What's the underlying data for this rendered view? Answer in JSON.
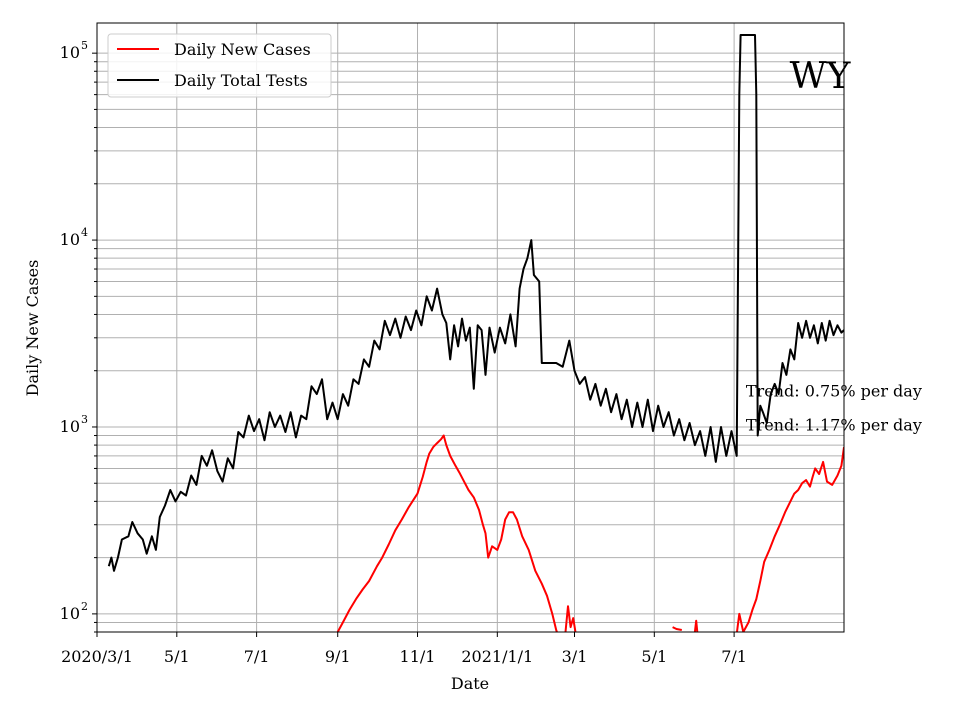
{
  "chart_data": {
    "type": "line",
    "title": "",
    "xlabel": "Date",
    "ylabel": "Daily New Cases",
    "yscale": "log",
    "ylim": [
      80,
      145000
    ],
    "xlim": [
      "2020-03-01",
      "2021-09-23"
    ],
    "grid": true,
    "legend_position": "top-left",
    "corner_label": "WY",
    "x_ticks": [
      {
        "date": "2020-03-01",
        "label": "2020/3/1"
      },
      {
        "date": "2020-05-01",
        "label": "5/1"
      },
      {
        "date": "2020-07-01",
        "label": "7/1"
      },
      {
        "date": "2020-09-01",
        "label": "9/1"
      },
      {
        "date": "2020-11-01",
        "label": "11/1"
      },
      {
        "date": "2021-01-01",
        "label": "2021/1/1"
      },
      {
        "date": "2021-03-01",
        "label": "3/1"
      },
      {
        "date": "2021-05-01",
        "label": "5/1"
      },
      {
        "date": "2021-07-01",
        "label": "7/1"
      }
    ],
    "y_ticks": [
      {
        "value": 100,
        "base": "10",
        "exp": "2"
      },
      {
        "value": 1000,
        "base": "10",
        "exp": "3"
      },
      {
        "value": 10000,
        "base": "10",
        "exp": "4"
      },
      {
        "value": 100000,
        "base": "10",
        "exp": "5"
      }
    ],
    "annotations": [
      {
        "text": "Trend: 0.75% per day",
        "date": "2021-07-10",
        "value": 1550
      },
      {
        "text": "Trend: 1.17% per day",
        "date": "2021-07-10",
        "value": 1020
      }
    ],
    "series": [
      {
        "name": "Daily New Cases",
        "color": "#ff0000",
        "points": [
          [
            "2020-08-30",
            75
          ],
          [
            "2020-09-01",
            80
          ],
          [
            "2020-09-05",
            90
          ],
          [
            "2020-09-10",
            105
          ],
          [
            "2020-09-15",
            120
          ],
          [
            "2020-09-20",
            135
          ],
          [
            "2020-09-25",
            150
          ],
          [
            "2020-10-01",
            180
          ],
          [
            "2020-10-05",
            200
          ],
          [
            "2020-10-10",
            235
          ],
          [
            "2020-10-15",
            280
          ],
          [
            "2020-10-20",
            320
          ],
          [
            "2020-10-25",
            370
          ],
          [
            "2020-11-01",
            440
          ],
          [
            "2020-11-05",
            540
          ],
          [
            "2020-11-08",
            650
          ],
          [
            "2020-11-10",
            720
          ],
          [
            "2020-11-13",
            780
          ],
          [
            "2020-11-16",
            820
          ],
          [
            "2020-11-19",
            860
          ],
          [
            "2020-11-21",
            900
          ],
          [
            "2020-11-23",
            800
          ],
          [
            "2020-11-26",
            700
          ],
          [
            "2020-11-30",
            620
          ],
          [
            "2020-12-03",
            570
          ],
          [
            "2020-12-06",
            520
          ],
          [
            "2020-12-10",
            460
          ],
          [
            "2020-12-14",
            420
          ],
          [
            "2020-12-18",
            360
          ],
          [
            "2020-12-21",
            300
          ],
          [
            "2020-12-23",
            270
          ],
          [
            "2020-12-25",
            200
          ],
          [
            "2020-12-28",
            230
          ],
          [
            "2021-01-01",
            220
          ],
          [
            "2021-01-04",
            250
          ],
          [
            "2021-01-07",
            320
          ],
          [
            "2021-01-10",
            350
          ],
          [
            "2021-01-13",
            350
          ],
          [
            "2021-01-16",
            320
          ],
          [
            "2021-01-20",
            260
          ],
          [
            "2021-01-25",
            220
          ],
          [
            "2021-01-30",
            170
          ],
          [
            "2021-02-04",
            145
          ],
          [
            "2021-02-08",
            125
          ],
          [
            "2021-02-12",
            100
          ],
          [
            "2021-02-15",
            82
          ],
          [
            "2021-02-17",
            75
          ]
        ],
        "points_b": [
          [
            "2021-02-22",
            78
          ],
          [
            "2021-02-24",
            110
          ],
          [
            "2021-02-26",
            85
          ],
          [
            "2021-02-28",
            95
          ],
          [
            "2021-03-02",
            78
          ]
        ],
        "points_c": [
          [
            "2021-05-15",
            85
          ],
          [
            "2021-05-18",
            83
          ],
          [
            "2021-05-22",
            82
          ]
        ],
        "points_d": [
          [
            "2021-06-01",
            80
          ],
          [
            "2021-06-02",
            92
          ],
          [
            "2021-06-03",
            78
          ]
        ],
        "points_e": [
          [
            "2021-07-03",
            78
          ],
          [
            "2021-07-05",
            100
          ],
          [
            "2021-07-08",
            80
          ],
          [
            "2021-07-12",
            90
          ],
          [
            "2021-07-15",
            105
          ],
          [
            "2021-07-18",
            120
          ],
          [
            "2021-07-21",
            150
          ],
          [
            "2021-07-24",
            190
          ],
          [
            "2021-07-28",
            220
          ],
          [
            "2021-08-01",
            260
          ],
          [
            "2021-08-05",
            300
          ],
          [
            "2021-08-09",
            350
          ],
          [
            "2021-08-13",
            400
          ],
          [
            "2021-08-16",
            440
          ],
          [
            "2021-08-19",
            460
          ],
          [
            "2021-08-22",
            500
          ],
          [
            "2021-08-25",
            520
          ],
          [
            "2021-08-28",
            480
          ],
          [
            "2021-08-30",
            540
          ],
          [
            "2021-09-01",
            600
          ],
          [
            "2021-09-04",
            560
          ],
          [
            "2021-09-07",
            650
          ],
          [
            "2021-09-10",
            510
          ],
          [
            "2021-09-14",
            490
          ],
          [
            "2021-09-18",
            550
          ],
          [
            "2021-09-21",
            620
          ],
          [
            "2021-09-23",
            780
          ]
        ]
      },
      {
        "name": "Daily Total Tests",
        "color": "#000000",
        "points": [
          [
            "2020-03-10",
            180
          ],
          [
            "2020-03-12",
            200
          ],
          [
            "2020-03-14",
            170
          ],
          [
            "2020-03-17",
            200
          ],
          [
            "2020-03-20",
            250
          ],
          [
            "2020-03-25",
            260
          ],
          [
            "2020-03-28",
            310
          ],
          [
            "2020-04-01",
            270
          ],
          [
            "2020-04-05",
            250
          ],
          [
            "2020-04-08",
            210
          ],
          [
            "2020-04-12",
            260
          ],
          [
            "2020-04-15",
            220
          ],
          [
            "2020-04-18",
            330
          ],
          [
            "2020-04-22",
            380
          ],
          [
            "2020-04-26",
            460
          ],
          [
            "2020-04-30",
            400
          ],
          [
            "2020-05-04",
            450
          ],
          [
            "2020-05-08",
            430
          ],
          [
            "2020-05-12",
            550
          ],
          [
            "2020-05-16",
            490
          ],
          [
            "2020-05-20",
            700
          ],
          [
            "2020-05-24",
            620
          ],
          [
            "2020-05-28",
            750
          ],
          [
            "2020-06-01",
            580
          ],
          [
            "2020-06-05",
            510
          ],
          [
            "2020-06-09",
            680
          ],
          [
            "2020-06-13",
            600
          ],
          [
            "2020-06-17",
            940
          ],
          [
            "2020-06-21",
            880
          ],
          [
            "2020-06-25",
            1150
          ],
          [
            "2020-06-29",
            950
          ],
          [
            "2020-07-03",
            1100
          ],
          [
            "2020-07-07",
            850
          ],
          [
            "2020-07-11",
            1200
          ],
          [
            "2020-07-15",
            1000
          ],
          [
            "2020-07-19",
            1150
          ],
          [
            "2020-07-23",
            940
          ],
          [
            "2020-07-27",
            1200
          ],
          [
            "2020-07-31",
            880
          ],
          [
            "2020-08-04",
            1150
          ],
          [
            "2020-08-08",
            1100
          ],
          [
            "2020-08-12",
            1650
          ],
          [
            "2020-08-16",
            1500
          ],
          [
            "2020-08-20",
            1800
          ],
          [
            "2020-08-24",
            1100
          ],
          [
            "2020-08-28",
            1350
          ],
          [
            "2020-09-01",
            1100
          ],
          [
            "2020-09-05",
            1500
          ],
          [
            "2020-09-09",
            1300
          ],
          [
            "2020-09-13",
            1800
          ],
          [
            "2020-09-17",
            1700
          ],
          [
            "2020-09-21",
            2300
          ],
          [
            "2020-09-25",
            2100
          ],
          [
            "2020-09-29",
            2900
          ],
          [
            "2020-10-03",
            2600
          ],
          [
            "2020-10-07",
            3700
          ],
          [
            "2020-10-11",
            3100
          ],
          [
            "2020-10-15",
            3800
          ],
          [
            "2020-10-19",
            3000
          ],
          [
            "2020-10-23",
            3900
          ],
          [
            "2020-10-27",
            3300
          ],
          [
            "2020-10-31",
            4200
          ],
          [
            "2020-11-04",
            3500
          ],
          [
            "2020-11-08",
            5000
          ],
          [
            "2020-11-12",
            4200
          ],
          [
            "2020-11-16",
            5500
          ],
          [
            "2020-11-20",
            4000
          ],
          [
            "2020-11-23",
            3600
          ],
          [
            "2020-11-26",
            2300
          ],
          [
            "2020-11-29",
            3500
          ],
          [
            "2020-12-02",
            2700
          ],
          [
            "2020-12-05",
            3800
          ],
          [
            "2020-12-08",
            2900
          ],
          [
            "2020-12-11",
            3400
          ],
          [
            "2020-12-14",
            1600
          ],
          [
            "2020-12-17",
            3500
          ],
          [
            "2020-12-20",
            3300
          ],
          [
            "2020-12-23",
            1900
          ],
          [
            "2020-12-26",
            3400
          ],
          [
            "2020-12-30",
            2500
          ],
          [
            "2021-01-03",
            3400
          ],
          [
            "2021-01-07",
            2800
          ],
          [
            "2021-01-11",
            4000
          ],
          [
            "2021-01-15",
            2700
          ],
          [
            "2021-01-18",
            5500
          ],
          [
            "2021-01-21",
            7000
          ],
          [
            "2021-01-24",
            8000
          ],
          [
            "2021-01-27",
            10000
          ],
          [
            "2021-01-29",
            6500
          ],
          [
            "2021-02-02",
            6000
          ],
          [
            "2021-02-04",
            2200
          ],
          [
            "2021-02-15",
            2200
          ],
          [
            "2021-02-20",
            2100
          ],
          [
            "2021-02-25",
            2900
          ],
          [
            "2021-03-01",
            2000
          ],
          [
            "2021-03-05",
            1700
          ],
          [
            "2021-03-09",
            1850
          ],
          [
            "2021-03-13",
            1400
          ],
          [
            "2021-03-17",
            1700
          ],
          [
            "2021-03-21",
            1300
          ],
          [
            "2021-03-25",
            1600
          ],
          [
            "2021-03-29",
            1200
          ],
          [
            "2021-04-02",
            1500
          ],
          [
            "2021-04-06",
            1100
          ],
          [
            "2021-04-10",
            1400
          ],
          [
            "2021-04-14",
            1000
          ],
          [
            "2021-04-18",
            1350
          ],
          [
            "2021-04-22",
            1000
          ],
          [
            "2021-04-26",
            1400
          ],
          [
            "2021-04-30",
            950
          ],
          [
            "2021-05-04",
            1300
          ],
          [
            "2021-05-08",
            1000
          ],
          [
            "2021-05-12",
            1200
          ],
          [
            "2021-05-16",
            900
          ],
          [
            "2021-05-20",
            1100
          ],
          [
            "2021-05-24",
            850
          ],
          [
            "2021-05-28",
            1050
          ],
          [
            "2021-06-01",
            800
          ],
          [
            "2021-06-05",
            950
          ],
          [
            "2021-06-09",
            700
          ],
          [
            "2021-06-13",
            1000
          ],
          [
            "2021-06-17",
            650
          ],
          [
            "2021-06-21",
            1000
          ],
          [
            "2021-06-25",
            700
          ],
          [
            "2021-06-29",
            950
          ],
          [
            "2021-07-03",
            700
          ],
          [
            "2021-07-05",
            60000
          ],
          [
            "2021-07-06",
            125000
          ],
          [
            "2021-07-17",
            125000
          ],
          [
            "2021-07-18",
            60000
          ],
          [
            "2021-07-19",
            900
          ],
          [
            "2021-07-21",
            1300
          ],
          [
            "2021-07-23",
            1200
          ],
          [
            "2021-07-26",
            1050
          ],
          [
            "2021-07-29",
            1500
          ],
          [
            "2021-08-01",
            1700
          ],
          [
            "2021-08-04",
            1500
          ],
          [
            "2021-08-07",
            2200
          ],
          [
            "2021-08-10",
            1900
          ],
          [
            "2021-08-13",
            2600
          ],
          [
            "2021-08-16",
            2300
          ],
          [
            "2021-08-19",
            3600
          ],
          [
            "2021-08-22",
            3000
          ],
          [
            "2021-08-25",
            3700
          ],
          [
            "2021-08-28",
            3000
          ],
          [
            "2021-08-31",
            3500
          ],
          [
            "2021-09-03",
            2800
          ],
          [
            "2021-09-06",
            3600
          ],
          [
            "2021-09-09",
            2900
          ],
          [
            "2021-09-12",
            3700
          ],
          [
            "2021-09-15",
            3100
          ],
          [
            "2021-09-18",
            3500
          ],
          [
            "2021-09-21",
            3200
          ],
          [
            "2021-09-23",
            3300
          ]
        ]
      }
    ]
  }
}
